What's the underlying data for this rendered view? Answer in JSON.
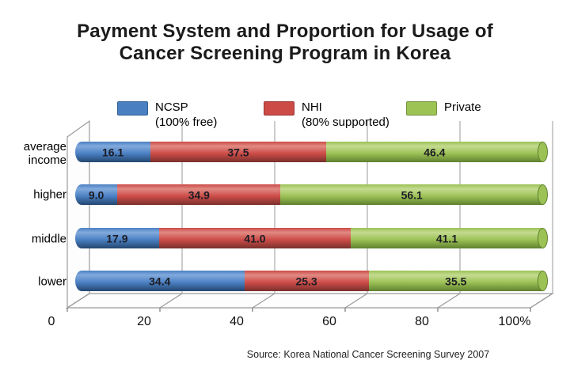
{
  "title": {
    "line1": "Payment System and Proportion for Usage of",
    "line2": "Cancer Screening Program in Korea"
  },
  "legend": {
    "items": [
      {
        "label": "NCSP",
        "sublabel": "(100% free)",
        "color": "#4a80c2"
      },
      {
        "label": "NHI",
        "sublabel": "(80% supported)",
        "color": "#cc4b47"
      },
      {
        "label": "Private",
        "sublabel": "",
        "color": "#9dc355"
      }
    ]
  },
  "chart_data": {
    "type": "bar",
    "variant": "horizontal-stacked-100",
    "title": "Payment System and Proportion for Usage of Cancer Screening Program in Korea",
    "categories": [
      "average income",
      "higher",
      "middle",
      "lower"
    ],
    "series": [
      {
        "name": "NCSP (100% free)",
        "color": "#4a80c2",
        "color_light": "#82aadc",
        "color_dark": "#23466f",
        "values": [
          16.1,
          9.0,
          17.9,
          34.4
        ],
        "labels": [
          "16.1",
          "9.0",
          "17.9",
          "34.4"
        ]
      },
      {
        "name": "NHI (80% supported)",
        "color": "#cc4b47",
        "color_light": "#e18a83",
        "color_dark": "#78302c",
        "values": [
          37.5,
          34.9,
          41.0,
          25.3
        ],
        "labels": [
          "37.5",
          "34.9",
          "41.0",
          "25.3"
        ]
      },
      {
        "name": "Private",
        "color": "#9cc155",
        "color_light": "#c4db90",
        "color_dark": "#60802f",
        "values": [
          46.4,
          56.1,
          41.1,
          35.5
        ],
        "labels": [
          "46.4",
          "56.1",
          "41.1",
          "35.5"
        ]
      }
    ],
    "x_ticks": [
      "0",
      "20",
      "40",
      "60",
      "80",
      "100%"
    ],
    "xlim": [
      0,
      100
    ],
    "grid": true,
    "legend_position": "top",
    "value_labels_shown": true,
    "source": "Source: Korea National Cancer Screening Survey 2007"
  }
}
